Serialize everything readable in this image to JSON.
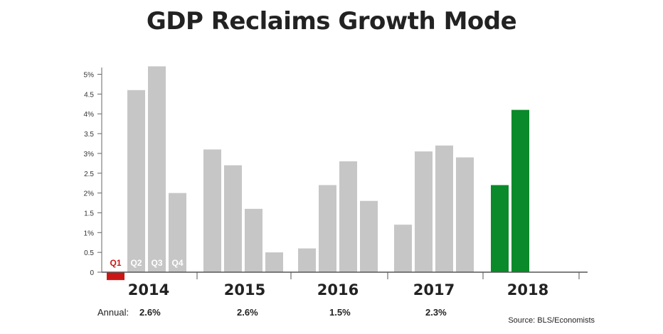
{
  "chart_data": {
    "type": "bar",
    "title": "GDP Reclaims Growth Mode",
    "ylim": [
      0,
      5.2
    ],
    "yticks": [
      {
        "value": 0,
        "label": "0"
      },
      {
        "value": 0.5,
        "label": "0.5"
      },
      {
        "value": 1,
        "label": "1%"
      },
      {
        "value": 1.5,
        "label": "1.5"
      },
      {
        "value": 2,
        "label": "2%"
      },
      {
        "value": 2.5,
        "label": "2.5"
      },
      {
        "value": 3,
        "label": "3%"
      },
      {
        "value": 3.5,
        "label": "3.5"
      },
      {
        "value": 4,
        "label": "4%"
      },
      {
        "value": 4.5,
        "label": "4.5"
      },
      {
        "value": 5,
        "label": "5%"
      }
    ],
    "quarter_labels": [
      "Q1",
      "Q2",
      "Q3",
      "Q4"
    ],
    "years": [
      {
        "label": "2014",
        "values": [
          -0.2,
          4.6,
          5.2,
          2.0
        ],
        "annual": "2.6%"
      },
      {
        "label": "2015",
        "values": [
          3.1,
          2.7,
          1.6,
          0.5
        ],
        "annual": "2.6%"
      },
      {
        "label": "2016",
        "values": [
          0.6,
          2.2,
          2.8,
          1.8
        ],
        "annual": "1.5%"
      },
      {
        "label": "2017",
        "values": [
          1.2,
          3.05,
          3.2,
          2.9
        ],
        "annual": "2.3%"
      },
      {
        "label": "2018",
        "values": [
          2.2,
          4.1
        ]
      }
    ],
    "colors": {
      "default": "#c6c6c6",
      "negative": "#cc1616",
      "highlight": "#0a8a2a"
    },
    "annual_label": "Annual:",
    "source": "Source: BLS/Economists"
  }
}
